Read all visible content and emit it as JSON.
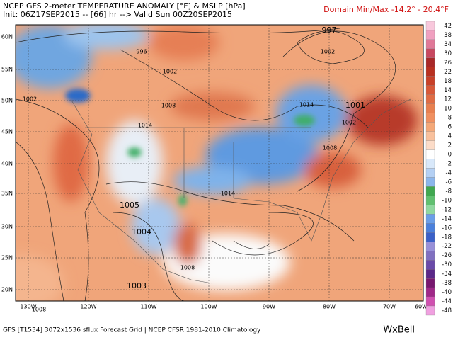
{
  "header": {
    "title": "NCEP GFS 2-meter TEMPERATURE ANOMALY [°F] & MSLP [hPa]",
    "init": "Init: 06Z17SEP2015 -- [66] hr --> Valid Sun 00Z20SEP2015",
    "domain_minmax": "Domain Min/Max -14.2° - 20.4°F"
  },
  "map": {
    "lat_labels": [
      "60N",
      "55N",
      "50N",
      "45N",
      "40N",
      "35N",
      "30N",
      "25N",
      "20N"
    ],
    "lon_labels": [
      "130W",
      "120W",
      "110W",
      "100W",
      "90W",
      "80W",
      "70W",
      "60W"
    ],
    "isobar_labels": [
      "997",
      "1002",
      "996",
      "1002",
      "1008",
      "1014",
      "1001",
      "1002",
      "1014",
      "1002",
      "1008",
      "1005",
      "1004",
      "1014",
      "1008",
      "1003",
      "1008"
    ]
  },
  "colorbar": {
    "labels": [
      "42",
      "38",
      "34",
      "30",
      "26",
      "22",
      "18",
      "14",
      "12",
      "10",
      "8",
      "6",
      "4",
      "2",
      "0",
      "-2",
      "-4",
      "-6",
      "-8",
      "-10",
      "-12",
      "-14",
      "-16",
      "-18",
      "-22",
      "-26",
      "-30",
      "-34",
      "-38",
      "-40",
      "-44",
      "-48"
    ],
    "colors": [
      "#f8c8dc",
      "#f0a0c0",
      "#e07898",
      "#c84860",
      "#a82828",
      "#b83020",
      "#c84028",
      "#d85838",
      "#e06c44",
      "#e88050",
      "#f09060",
      "#f4a878",
      "#f8c09c",
      "#fcdcc8",
      "#ffffff",
      "#d8e8fa",
      "#b4d0f4",
      "#8cb6ec",
      "#40a850",
      "#60c070",
      "#90d8a0",
      "#6a9ee8",
      "#4a80dc",
      "#3a60c8",
      "#9890d8",
      "#8070c0",
      "#6a4aa8",
      "#5a2888",
      "#781870",
      "#a02888",
      "#d050b0",
      "#f0a0e0"
    ]
  },
  "footer": {
    "source": "GFS [T1534] 3072x1536 sflux Forecast Grid | NCEP CFSR 1981-2010 Climatology",
    "brand": "WxBell"
  }
}
